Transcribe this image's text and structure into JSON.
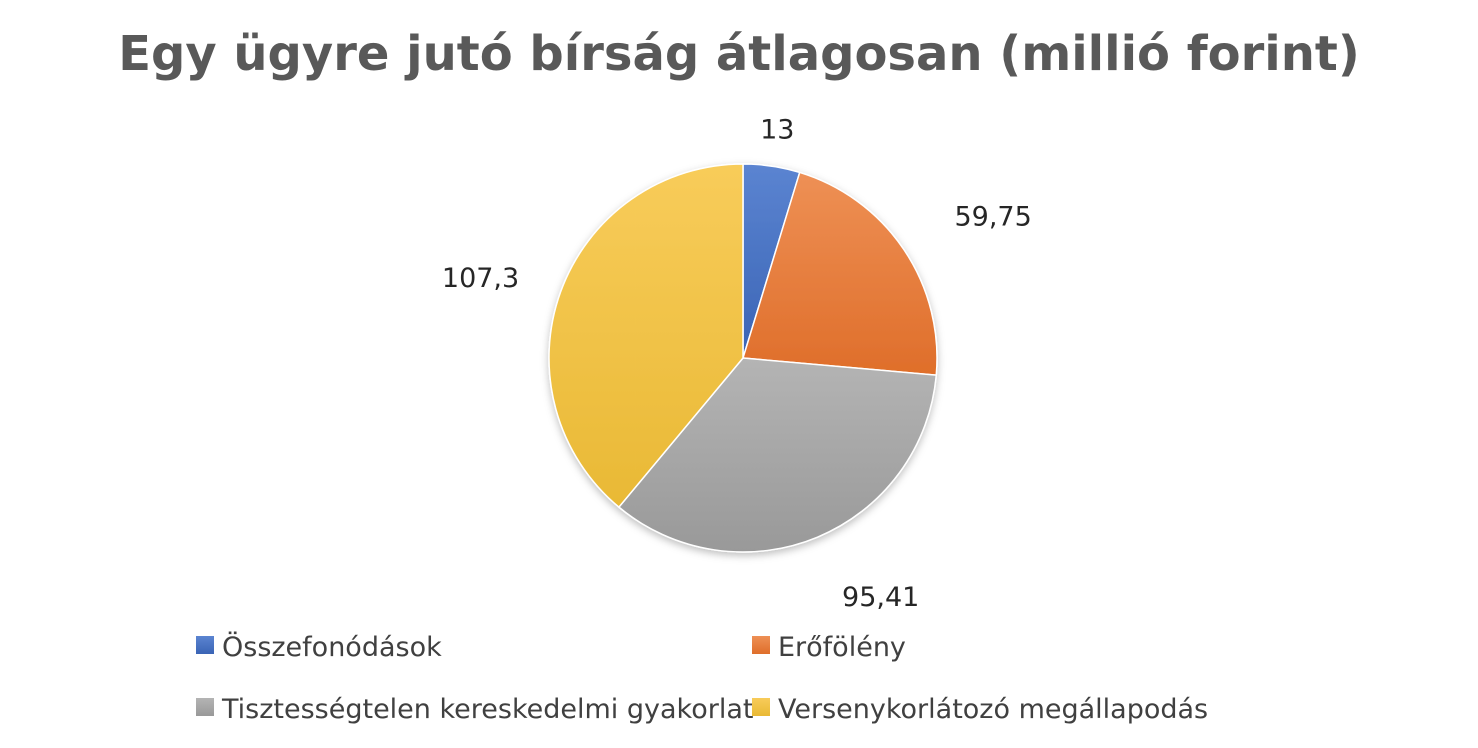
{
  "chart_data": {
    "type": "pie",
    "title": "Egy ügyre jutó bírság átlagosan (millió forint)",
    "slices": [
      {
        "name": "Összefonódások",
        "value": 13,
        "label": "13",
        "color": "#4472C4"
      },
      {
        "name": "Erőfölény",
        "value": 59.75,
        "label": "59,75",
        "color": "#ED7D31"
      },
      {
        "name": "Tisztességtelen kereskedelmi gyakorlat",
        "value": 95.41,
        "label": "95,41",
        "color": "#A5A5A5"
      },
      {
        "name": "Versenykorlátozó megállapodás",
        "value": 107.3,
        "label": "107,3",
        "color": "#FFC000"
      }
    ],
    "legend_position": "bottom",
    "start_angle": "12 o'clock",
    "direction": "clockwise"
  }
}
